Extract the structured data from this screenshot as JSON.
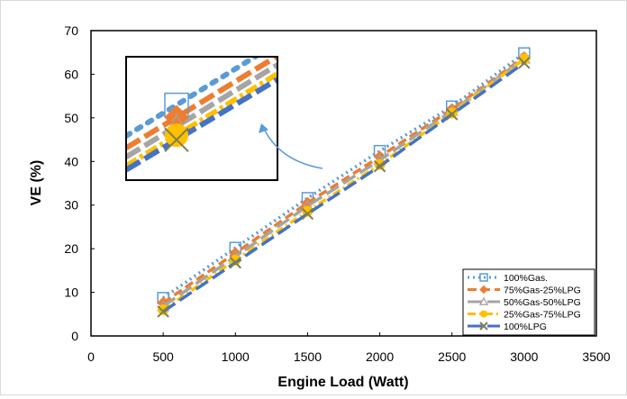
{
  "chart_data": {
    "type": "line",
    "title": "",
    "xlabel": "Engine Load (Watt)",
    "ylabel": "VE (%)",
    "xlim": [
      0,
      3500
    ],
    "ylim": [
      0,
      70
    ],
    "xticks": [
      0,
      500,
      1000,
      1500,
      2000,
      2500,
      3000,
      3500
    ],
    "yticks": [
      0,
      10,
      20,
      30,
      40,
      50,
      60,
      70
    ],
    "grid": false,
    "legend_position": "bottom-right",
    "x": [
      500,
      1000,
      1500,
      2000,
      2500,
      3000
    ],
    "series": [
      {
        "name": "100%Gas.",
        "values": [
          8.7,
          20.2,
          31.6,
          42.4,
          52.6,
          64.8
        ],
        "color": "#5b9bd5",
        "dash": "dot",
        "marker": "square-open"
      },
      {
        "name": "75%Gas-25%LPG",
        "values": [
          7.6,
          19.0,
          30.5,
          41.1,
          52.0,
          63.9
        ],
        "color": "#ed7d31",
        "dash": "dash",
        "marker": "diamond"
      },
      {
        "name": "50%Gas-50%LPG",
        "values": [
          6.8,
          18.2,
          29.8,
          40.3,
          51.6,
          63.6
        ],
        "color": "#a5a5a5",
        "dash": "longdash",
        "marker": "triangle-open"
      },
      {
        "name": "25%Gas-75%LPG",
        "values": [
          6.0,
          17.4,
          28.6,
          39.3,
          51.1,
          63.5
        ],
        "color": "#ffc000",
        "dash": "dashdot",
        "marker": "circle"
      },
      {
        "name": "100%LPG",
        "values": [
          5.6,
          16.8,
          28.0,
          38.9,
          50.8,
          62.6
        ],
        "color": "#4472c4",
        "dash": "longdash",
        "marker": "x"
      }
    ],
    "inset": {
      "description_zoom_of": "x=500 region",
      "arrow_color": "#5b9bd5"
    }
  }
}
